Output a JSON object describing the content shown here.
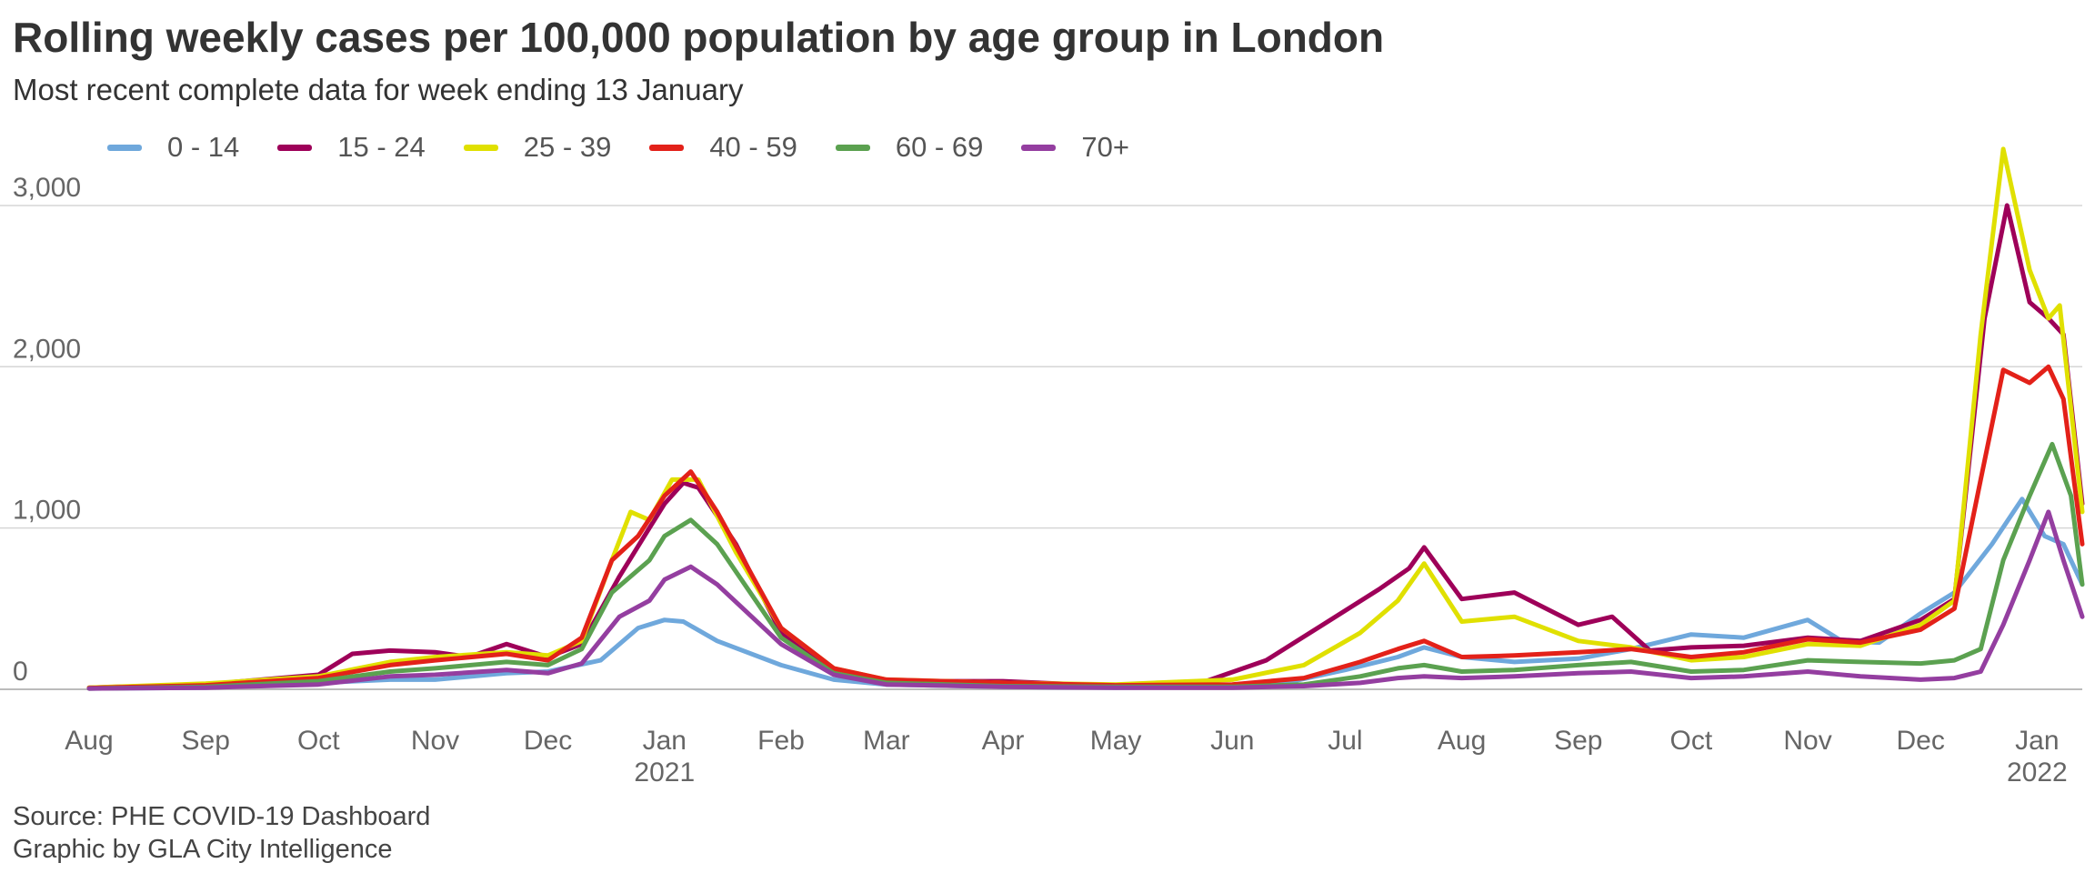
{
  "title": "Rolling weekly cases per 100,000 population by age group in London",
  "subtitle": "Most recent complete data for week ending 13 January",
  "source_line1": "Source: PHE COVID-19 Dashboard",
  "source_line2": "Graphic by GLA City Intelligence",
  "chart_data": {
    "type": "line",
    "x_unit": "date",
    "x_start": "2020-08-01",
    "x_end": "2022-01-13",
    "ylim": [
      0,
      3400
    ],
    "y_ticks": [
      0,
      1000,
      2000,
      3000
    ],
    "y_tick_labels": [
      "0",
      "1,000",
      "2,000",
      "3,000"
    ],
    "grid": "horizontal",
    "legend_position": "top-left",
    "x_ticks": [
      {
        "date": "2020-08-01",
        "label": "Aug",
        "year": ""
      },
      {
        "date": "2020-09-01",
        "label": "Sep",
        "year": ""
      },
      {
        "date": "2020-10-01",
        "label": "Oct",
        "year": ""
      },
      {
        "date": "2020-11-01",
        "label": "Nov",
        "year": ""
      },
      {
        "date": "2020-12-01",
        "label": "Dec",
        "year": ""
      },
      {
        "date": "2021-01-01",
        "label": "Jan",
        "year": "2021"
      },
      {
        "date": "2021-02-01",
        "label": "Feb",
        "year": ""
      },
      {
        "date": "2021-03-01",
        "label": "Mar",
        "year": ""
      },
      {
        "date": "2021-04-01",
        "label": "Apr",
        "year": ""
      },
      {
        "date": "2021-05-01",
        "label": "May",
        "year": ""
      },
      {
        "date": "2021-06-01",
        "label": "Jun",
        "year": ""
      },
      {
        "date": "2021-07-01",
        "label": "Jul",
        "year": ""
      },
      {
        "date": "2021-08-01",
        "label": "Aug",
        "year": ""
      },
      {
        "date": "2021-09-01",
        "label": "Sep",
        "year": ""
      },
      {
        "date": "2021-10-01",
        "label": "Oct",
        "year": ""
      },
      {
        "date": "2021-11-01",
        "label": "Nov",
        "year": ""
      },
      {
        "date": "2021-12-01",
        "label": "Dec",
        "year": ""
      },
      {
        "date": "2022-01-01",
        "label": "Jan",
        "year": "2022"
      }
    ],
    "series": [
      {
        "name": "0 - 14",
        "color": "#6fa8dc",
        "points": [
          [
            "2020-08-01",
            5
          ],
          [
            "2020-09-01",
            10
          ],
          [
            "2020-10-01",
            40
          ],
          [
            "2020-10-20",
            60
          ],
          [
            "2020-11-01",
            60
          ],
          [
            "2020-11-20",
            100
          ],
          [
            "2020-12-01",
            110
          ],
          [
            "2020-12-15",
            180
          ],
          [
            "2020-12-25",
            380
          ],
          [
            "2021-01-01",
            430
          ],
          [
            "2021-01-06",
            420
          ],
          [
            "2021-01-15",
            300
          ],
          [
            "2021-02-01",
            150
          ],
          [
            "2021-02-15",
            60
          ],
          [
            "2021-03-01",
            30
          ],
          [
            "2021-04-01",
            15
          ],
          [
            "2021-05-01",
            10
          ],
          [
            "2021-06-01",
            15
          ],
          [
            "2021-06-15",
            40
          ],
          [
            "2021-07-01",
            120
          ],
          [
            "2021-07-15",
            200
          ],
          [
            "2021-07-22",
            260
          ],
          [
            "2021-08-01",
            200
          ],
          [
            "2021-08-15",
            170
          ],
          [
            "2021-09-01",
            190
          ],
          [
            "2021-09-15",
            250
          ],
          [
            "2021-10-01",
            340
          ],
          [
            "2021-10-15",
            320
          ],
          [
            "2021-11-01",
            430
          ],
          [
            "2021-11-10",
            300
          ],
          [
            "2021-11-20",
            290
          ],
          [
            "2021-12-01",
            470
          ],
          [
            "2021-12-10",
            600
          ],
          [
            "2021-12-20",
            900
          ],
          [
            "2021-12-28",
            1180
          ],
          [
            "2022-01-03",
            950
          ],
          [
            "2022-01-08",
            900
          ],
          [
            "2022-01-13",
            650
          ]
        ]
      },
      {
        "name": "15 - 24",
        "color": "#9e0059",
        "points": [
          [
            "2020-08-01",
            10
          ],
          [
            "2020-09-01",
            30
          ],
          [
            "2020-10-01",
            90
          ],
          [
            "2020-10-10",
            220
          ],
          [
            "2020-10-20",
            240
          ],
          [
            "2020-11-01",
            230
          ],
          [
            "2020-11-10",
            200
          ],
          [
            "2020-11-20",
            280
          ],
          [
            "2020-12-01",
            200
          ],
          [
            "2020-12-10",
            280
          ],
          [
            "2020-12-20",
            700
          ],
          [
            "2020-12-28",
            1000
          ],
          [
            "2021-01-01",
            1150
          ],
          [
            "2021-01-06",
            1280
          ],
          [
            "2021-01-10",
            1250
          ],
          [
            "2021-01-20",
            900
          ],
          [
            "2021-02-01",
            350
          ],
          [
            "2021-02-15",
            110
          ],
          [
            "2021-03-01",
            50
          ],
          [
            "2021-04-01",
            50
          ],
          [
            "2021-05-01",
            20
          ],
          [
            "2021-05-25",
            50
          ],
          [
            "2021-06-10",
            180
          ],
          [
            "2021-06-25",
            400
          ],
          [
            "2021-07-10",
            620
          ],
          [
            "2021-07-18",
            750
          ],
          [
            "2021-07-22",
            880
          ],
          [
            "2021-08-01",
            560
          ],
          [
            "2021-08-15",
            600
          ],
          [
            "2021-09-01",
            400
          ],
          [
            "2021-09-10",
            450
          ],
          [
            "2021-09-20",
            240
          ],
          [
            "2021-10-01",
            260
          ],
          [
            "2021-10-15",
            270
          ],
          [
            "2021-11-01",
            320
          ],
          [
            "2021-11-15",
            300
          ],
          [
            "2021-12-01",
            430
          ],
          [
            "2021-12-10",
            560
          ],
          [
            "2021-12-18",
            2300
          ],
          [
            "2021-12-24",
            3000
          ],
          [
            "2021-12-30",
            2400
          ],
          [
            "2022-01-04",
            2300
          ],
          [
            "2022-01-08",
            2200
          ],
          [
            "2022-01-13",
            1150
          ]
        ]
      },
      {
        "name": "25 - 39",
        "color": "#e0e000",
        "points": [
          [
            "2020-08-01",
            10
          ],
          [
            "2020-09-01",
            35
          ],
          [
            "2020-10-01",
            80
          ],
          [
            "2020-10-20",
            170
          ],
          [
            "2020-11-01",
            200
          ],
          [
            "2020-11-20",
            230
          ],
          [
            "2020-12-01",
            210
          ],
          [
            "2020-12-10",
            300
          ],
          [
            "2020-12-18",
            800
          ],
          [
            "2020-12-23",
            1100
          ],
          [
            "2020-12-28",
            1050
          ],
          [
            "2021-01-03",
            1300
          ],
          [
            "2021-01-10",
            1300
          ],
          [
            "2021-01-20",
            850
          ],
          [
            "2021-02-01",
            380
          ],
          [
            "2021-02-15",
            130
          ],
          [
            "2021-03-01",
            60
          ],
          [
            "2021-04-01",
            40
          ],
          [
            "2021-05-01",
            30
          ],
          [
            "2021-06-01",
            60
          ],
          [
            "2021-06-20",
            150
          ],
          [
            "2021-07-05",
            350
          ],
          [
            "2021-07-15",
            550
          ],
          [
            "2021-07-22",
            780
          ],
          [
            "2021-08-01",
            420
          ],
          [
            "2021-08-15",
            450
          ],
          [
            "2021-09-01",
            300
          ],
          [
            "2021-09-15",
            260
          ],
          [
            "2021-10-01",
            180
          ],
          [
            "2021-10-15",
            200
          ],
          [
            "2021-11-01",
            280
          ],
          [
            "2021-11-15",
            270
          ],
          [
            "2021-12-01",
            400
          ],
          [
            "2021-12-10",
            550
          ],
          [
            "2021-12-17",
            2200
          ],
          [
            "2021-12-23",
            3350
          ],
          [
            "2021-12-30",
            2600
          ],
          [
            "2022-01-04",
            2300
          ],
          [
            "2022-01-07",
            2380
          ],
          [
            "2022-01-13",
            1100
          ]
        ]
      },
      {
        "name": "40 - 59",
        "color": "#e32119",
        "points": [
          [
            "2020-08-01",
            8
          ],
          [
            "2020-09-01",
            25
          ],
          [
            "2020-10-01",
            70
          ],
          [
            "2020-10-20",
            150
          ],
          [
            "2020-11-01",
            180
          ],
          [
            "2020-11-20",
            220
          ],
          [
            "2020-12-01",
            180
          ],
          [
            "2020-12-10",
            320
          ],
          [
            "2020-12-18",
            800
          ],
          [
            "2020-12-25",
            950
          ],
          [
            "2021-01-01",
            1200
          ],
          [
            "2021-01-08",
            1350
          ],
          [
            "2021-01-15",
            1100
          ],
          [
            "2021-02-01",
            380
          ],
          [
            "2021-02-15",
            130
          ],
          [
            "2021-03-01",
            60
          ],
          [
            "2021-04-01",
            40
          ],
          [
            "2021-05-01",
            25
          ],
          [
            "2021-06-01",
            30
          ],
          [
            "2021-06-20",
            70
          ],
          [
            "2021-07-05",
            170
          ],
          [
            "2021-07-15",
            250
          ],
          [
            "2021-07-22",
            300
          ],
          [
            "2021-08-01",
            200
          ],
          [
            "2021-08-15",
            210
          ],
          [
            "2021-09-01",
            230
          ],
          [
            "2021-09-15",
            250
          ],
          [
            "2021-10-01",
            200
          ],
          [
            "2021-10-15",
            230
          ],
          [
            "2021-11-01",
            310
          ],
          [
            "2021-11-15",
            290
          ],
          [
            "2021-12-01",
            370
          ],
          [
            "2021-12-10",
            500
          ],
          [
            "2021-12-17",
            1300
          ],
          [
            "2021-12-23",
            1980
          ],
          [
            "2021-12-30",
            1900
          ],
          [
            "2022-01-04",
            2000
          ],
          [
            "2022-01-08",
            1800
          ],
          [
            "2022-01-13",
            900
          ]
        ]
      },
      {
        "name": "60 - 69",
        "color": "#5ba150",
        "points": [
          [
            "2020-08-01",
            5
          ],
          [
            "2020-09-01",
            15
          ],
          [
            "2020-10-01",
            50
          ],
          [
            "2020-10-20",
            110
          ],
          [
            "2020-11-01",
            130
          ],
          [
            "2020-11-20",
            170
          ],
          [
            "2020-12-01",
            150
          ],
          [
            "2020-12-10",
            250
          ],
          [
            "2020-12-18",
            600
          ],
          [
            "2020-12-28",
            800
          ],
          [
            "2021-01-01",
            950
          ],
          [
            "2021-01-08",
            1050
          ],
          [
            "2021-01-15",
            900
          ],
          [
            "2021-02-01",
            320
          ],
          [
            "2021-02-15",
            100
          ],
          [
            "2021-03-01",
            40
          ],
          [
            "2021-04-01",
            20
          ],
          [
            "2021-05-01",
            15
          ],
          [
            "2021-06-01",
            15
          ],
          [
            "2021-06-20",
            30
          ],
          [
            "2021-07-05",
            80
          ],
          [
            "2021-07-15",
            130
          ],
          [
            "2021-07-22",
            150
          ],
          [
            "2021-08-01",
            110
          ],
          [
            "2021-08-15",
            120
          ],
          [
            "2021-09-01",
            150
          ],
          [
            "2021-09-15",
            170
          ],
          [
            "2021-10-01",
            110
          ],
          [
            "2021-10-15",
            120
          ],
          [
            "2021-11-01",
            180
          ],
          [
            "2021-11-15",
            170
          ],
          [
            "2021-12-01",
            160
          ],
          [
            "2021-12-10",
            180
          ],
          [
            "2021-12-17",
            250
          ],
          [
            "2021-12-23",
            800
          ],
          [
            "2021-12-30",
            1200
          ],
          [
            "2022-01-05",
            1520
          ],
          [
            "2022-01-10",
            1200
          ],
          [
            "2022-01-13",
            650
          ]
        ]
      },
      {
        "name": "70+",
        "color": "#943ea0",
        "points": [
          [
            "2020-08-01",
            5
          ],
          [
            "2020-09-01",
            10
          ],
          [
            "2020-10-01",
            30
          ],
          [
            "2020-10-20",
            80
          ],
          [
            "2020-11-01",
            90
          ],
          [
            "2020-11-20",
            120
          ],
          [
            "2020-12-01",
            100
          ],
          [
            "2020-12-10",
            160
          ],
          [
            "2020-12-20",
            450
          ],
          [
            "2020-12-28",
            550
          ],
          [
            "2021-01-01",
            680
          ],
          [
            "2021-01-08",
            760
          ],
          [
            "2021-01-15",
            650
          ],
          [
            "2021-02-01",
            280
          ],
          [
            "2021-02-15",
            90
          ],
          [
            "2021-03-01",
            30
          ],
          [
            "2021-04-01",
            15
          ],
          [
            "2021-05-01",
            10
          ],
          [
            "2021-06-01",
            10
          ],
          [
            "2021-06-20",
            20
          ],
          [
            "2021-07-05",
            40
          ],
          [
            "2021-07-15",
            70
          ],
          [
            "2021-07-22",
            80
          ],
          [
            "2021-08-01",
            70
          ],
          [
            "2021-08-15",
            80
          ],
          [
            "2021-09-01",
            100
          ],
          [
            "2021-09-15",
            110
          ],
          [
            "2021-10-01",
            70
          ],
          [
            "2021-10-15",
            80
          ],
          [
            "2021-11-01",
            110
          ],
          [
            "2021-11-15",
            80
          ],
          [
            "2021-12-01",
            60
          ],
          [
            "2021-12-10",
            70
          ],
          [
            "2021-12-17",
            110
          ],
          [
            "2021-12-23",
            400
          ],
          [
            "2021-12-30",
            800
          ],
          [
            "2022-01-04",
            1100
          ],
          [
            "2022-01-08",
            800
          ],
          [
            "2022-01-13",
            450
          ]
        ]
      }
    ]
  }
}
